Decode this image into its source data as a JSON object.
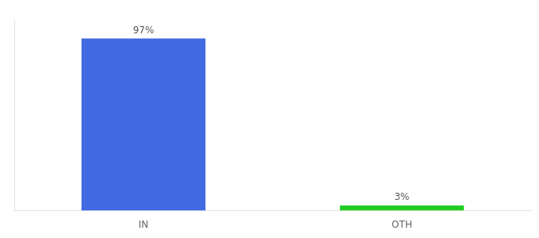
{
  "chart_data": {
    "type": "bar",
    "categories": [
      "IN",
      "OTH"
    ],
    "values": [
      97,
      3
    ],
    "value_labels": [
      "97%",
      "3%"
    ],
    "colors": [
      "#4169e1",
      "#22cc22"
    ],
    "ylim": [
      0,
      108
    ],
    "grid": false,
    "data_labels": true,
    "tick_labels": "x"
  }
}
